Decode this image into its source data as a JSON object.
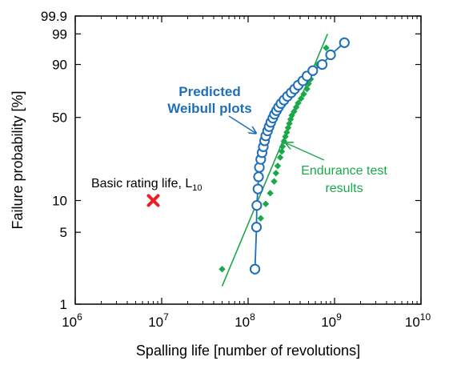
{
  "chart_data": {
    "type": "scatter",
    "title": "",
    "xlabel": "Spalling life [number of revolutions]",
    "ylabel": "Failure probability [%]",
    "x_scale": "log",
    "y_scale": "weibull",
    "xlim": [
      1000000,
      10000000000
    ],
    "ylim": [
      1,
      99.9
    ],
    "x_ticks": [
      {
        "value": 1000000,
        "base": "10",
        "exp": "6"
      },
      {
        "value": 10000000,
        "base": "10",
        "exp": "7"
      },
      {
        "value": 100000000,
        "base": "10",
        "exp": "8"
      },
      {
        "value": 1000000000,
        "base": "10",
        "exp": "9"
      },
      {
        "value": 10000000000,
        "base": "10",
        "exp": "10"
      }
    ],
    "y_ticks": [
      {
        "value": 1,
        "label": "1"
      },
      {
        "value": 5,
        "label": "5"
      },
      {
        "value": 10,
        "label": "10"
      },
      {
        "value": 50,
        "label": "50"
      },
      {
        "value": 90,
        "label": "90"
      },
      {
        "value": 99,
        "label": "99"
      },
      {
        "value": 99.9,
        "label": "99.9"
      }
    ],
    "grid": false,
    "colors": {
      "predicted": "#1f6fb8",
      "endurance": "#1aa84a",
      "l10": "#ee1c24"
    },
    "annotations": {
      "predicted_line1": "Predicted",
      "predicted_line2": "Weibull plots",
      "endurance_line1": "Endurance test",
      "endurance_line2": "results",
      "l10_label": "Basic rating life, L",
      "l10_subscript": "10"
    },
    "series": [
      {
        "id": "predicted",
        "marker": "open-circle",
        "points": [
          [
            120000000.0,
            2.2
          ],
          [
            125000000.0,
            5.6
          ],
          [
            126000000.0,
            9.0
          ],
          [
            130000000.0,
            12.8
          ],
          [
            132000000.0,
            16.5
          ],
          [
            135000000.0,
            20.0
          ],
          [
            140000000.0,
            23.5
          ],
          [
            145000000.0,
            26.8
          ],
          [
            150000000.0,
            30.0
          ],
          [
            155000000.0,
            33.5
          ],
          [
            160000000.0,
            36.6
          ],
          [
            168000000.0,
            40.0
          ],
          [
            175000000.0,
            43.0
          ],
          [
            183000000.0,
            46.2
          ],
          [
            193000000.0,
            49.5
          ],
          [
            202000000.0,
            52.5
          ],
          [
            213000000.0,
            55.4
          ],
          [
            225000000.0,
            58.3
          ],
          [
            240000000.0,
            61.3
          ],
          [
            260000000.0,
            64.2
          ],
          [
            285000000.0,
            67.3
          ],
          [
            315000000.0,
            70.3
          ],
          [
            345000000.0,
            73.2
          ],
          [
            380000000.0,
            76.3
          ],
          [
            430000000.0,
            79.6
          ],
          [
            480000000.0,
            83.0
          ],
          [
            560000000.0,
            86.5
          ],
          [
            720000000.0,
            90.0
          ],
          [
            900000000.0,
            94.3
          ],
          [
            1300000000.0,
            97.7
          ]
        ]
      },
      {
        "id": "endurance",
        "marker": "diamond",
        "points": [
          [
            50000000.0,
            2.2
          ],
          [
            140000000.0,
            6.8
          ],
          [
            160000000.0,
            9.3
          ],
          [
            180000000.0,
            11.7
          ],
          [
            200000000.0,
            15.0
          ],
          [
            210000000.0,
            17.8
          ],
          [
            220000000.0,
            20.6
          ],
          [
            235000000.0,
            24.4
          ],
          [
            245000000.0,
            27.4
          ],
          [
            250000000.0,
            30.1
          ],
          [
            260000000.0,
            33.3
          ],
          [
            270000000.0,
            36.2
          ],
          [
            280000000.0,
            39.0
          ],
          [
            290000000.0,
            42.2
          ],
          [
            300000000.0,
            45.3
          ],
          [
            310000000.0,
            48.5
          ],
          [
            320000000.0,
            51.6
          ],
          [
            340000000.0,
            54.7
          ],
          [
            360000000.0,
            58.3
          ],
          [
            380000000.0,
            61.8
          ],
          [
            410000000.0,
            65.5
          ],
          [
            440000000.0,
            69.2
          ],
          [
            480000000.0,
            73.3
          ],
          [
            500000000.0,
            77.4
          ],
          [
            530000000.0,
            80.8
          ],
          [
            580000000.0,
            85.1
          ],
          [
            640000000.0,
            90.0
          ],
          [
            800000000.0,
            96.5
          ]
        ]
      },
      {
        "id": "endurance-fit",
        "marker": "line",
        "points": [
          [
            50000000.0,
            1.5
          ],
          [
            830000000.0,
            99.0
          ]
        ]
      },
      {
        "id": "l10",
        "marker": "x",
        "points": [
          [
            8000000.0,
            10.0
          ]
        ]
      }
    ]
  }
}
